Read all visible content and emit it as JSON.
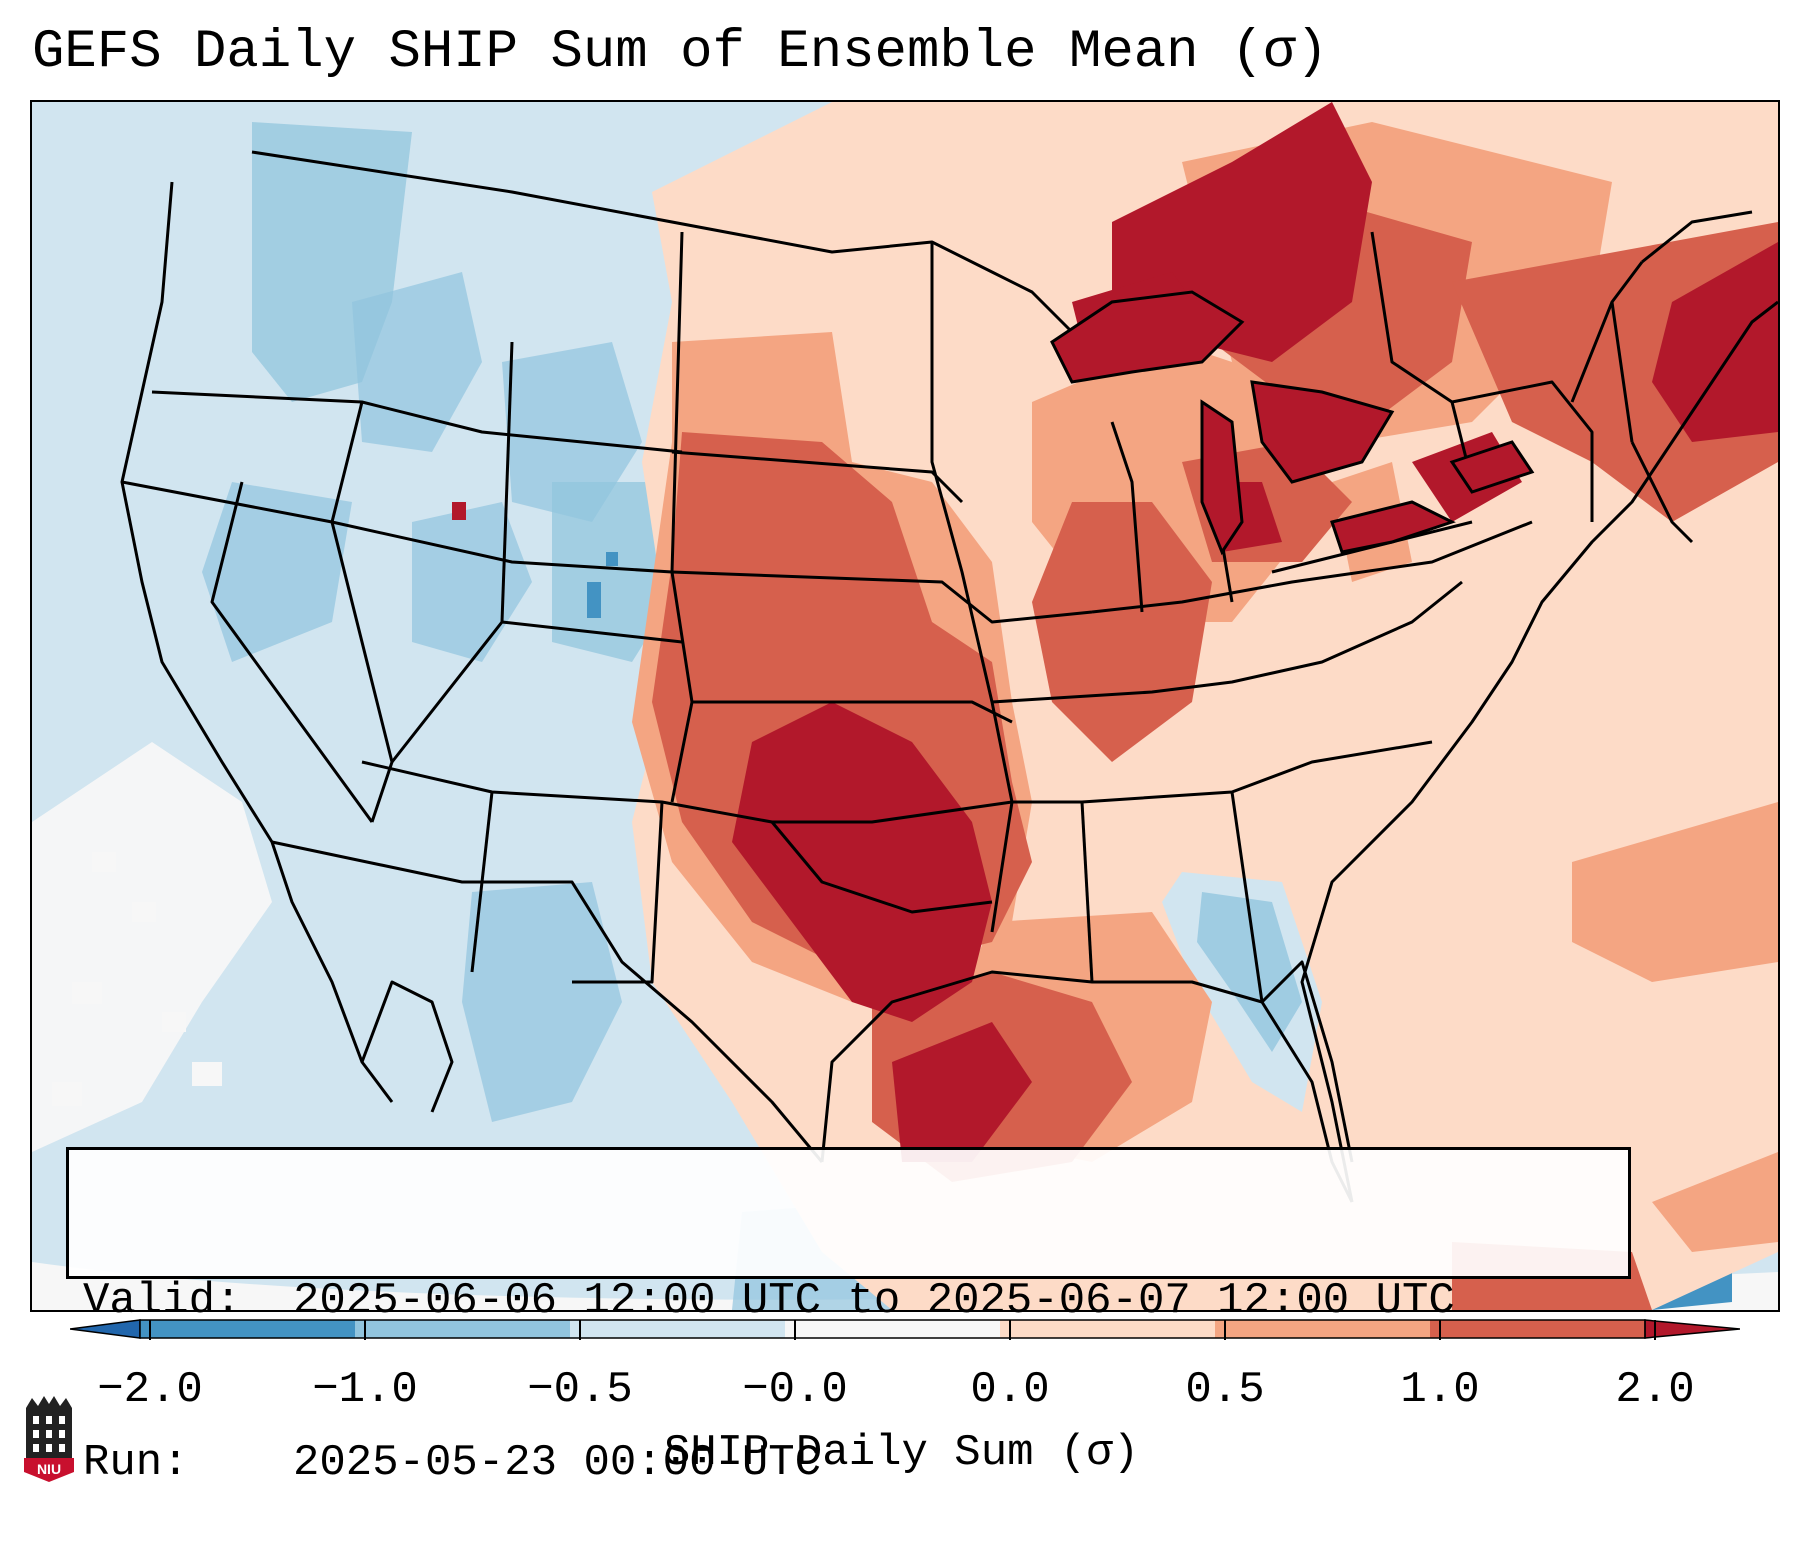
{
  "title": "GEFS Daily SHIP Sum of Ensemble Mean (σ)",
  "valid_label": "Valid:",
  "valid_value": "2025-06-06 12:00 UTC to 2025-06-07 12:00 UTC",
  "run_label": "Run:",
  "run_value": "2025-05-23 00:00 UTC",
  "colorbar": {
    "label": "SHIP Daily Sum (σ)",
    "ticks": [
      "−2.0",
      "−1.0",
      "−0.5",
      "−0.0",
      "0.0",
      "0.5",
      "1.0",
      "2.0"
    ],
    "colors": [
      "#2166ac",
      "#4393c3",
      "#92c5de",
      "#d1e5f0",
      "#f7f7f7",
      "#fddbc7",
      "#f4a582",
      "#d6604d",
      "#b2182b"
    ]
  },
  "logo_text": "NIU",
  "icons": [
    "niu-logo-icon"
  ]
}
